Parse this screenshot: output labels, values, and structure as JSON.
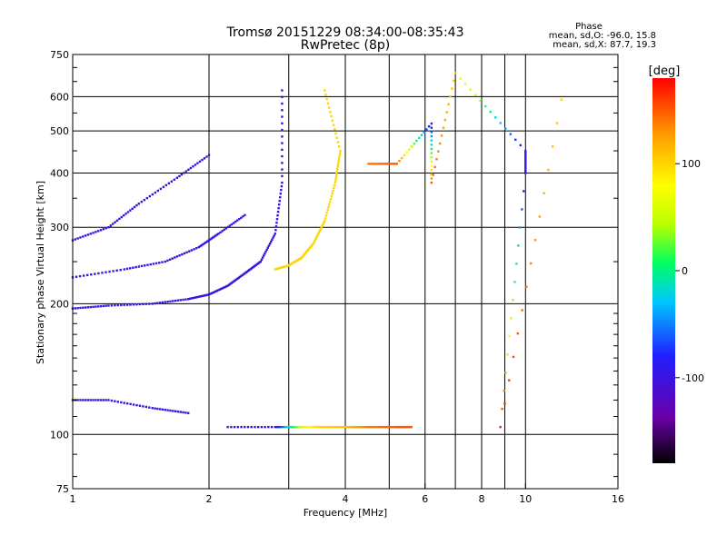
{
  "chart_data": {
    "type": "scatter",
    "title": "Tromsø 20151229 08:34:00-08:35:43",
    "subtitle": "RwPretec (8p)",
    "xlabel": "Frequency [MHz]",
    "ylabel": "Stationary phase Virtual Height [km]",
    "x_scale": "log2",
    "y_scale": "log",
    "xlim": [
      1,
      16
    ],
    "ylim": [
      75,
      750
    ],
    "x_ticks": [
      1,
      2,
      3,
      4,
      5,
      6,
      7,
      8,
      9,
      10,
      16
    ],
    "x_tick_labels": [
      "1",
      "2",
      "4",
      "6",
      "8",
      "10",
      "16"
    ],
    "x_tick_label_values": [
      1,
      2,
      4,
      6,
      8,
      10,
      16
    ],
    "y_ticks": [
      75,
      100,
      200,
      300,
      400,
      500,
      600,
      750
    ],
    "y_tick_labels": [
      "75",
      "100",
      "200",
      "300",
      "400",
      "500",
      "600",
      "750"
    ],
    "grid": true,
    "phase_stats": {
      "title": "Phase",
      "line1": "mean, sd,O: -96.0, 15.8",
      "line2": "mean, sd,X:  87.7, 19.3"
    },
    "colorbar": {
      "label": "[deg]",
      "range": [
        -180,
        180
      ],
      "ticks": [
        100,
        0,
        -100
      ],
      "tick_labels": [
        "100",
        "0",
        "-100"
      ],
      "colors": [
        "#000000",
        "#6a00a8",
        "#1f1fff",
        "#00c8ff",
        "#00ff60",
        "#b8ff00",
        "#ffff00",
        "#ffa000",
        "#ff0000"
      ]
    },
    "series": [
      {
        "points": [
          [
            1.0,
            195,
            -100
          ],
          [
            1.2,
            198,
            -100
          ],
          [
            1.5,
            200,
            -100
          ],
          [
            1.8,
            205,
            -100
          ],
          [
            2.0,
            210,
            -100
          ],
          [
            2.2,
            220,
            -100
          ],
          [
            2.4,
            235,
            -100
          ],
          [
            2.6,
            250,
            -100
          ],
          [
            2.8,
            290,
            -100
          ],
          [
            2.9,
            380,
            -100
          ],
          [
            2.9,
            620,
            -100
          ]
        ]
      },
      {
        "points": [
          [
            1.0,
            230,
            -100
          ],
          [
            1.3,
            240,
            -100
          ],
          [
            1.6,
            250,
            -100
          ],
          [
            1.9,
            270,
            -100
          ],
          [
            2.1,
            290,
            -100
          ],
          [
            2.4,
            320,
            -100
          ]
        ]
      },
      {
        "points": [
          [
            1.0,
            280,
            -100
          ],
          [
            1.2,
            300,
            -100
          ],
          [
            1.4,
            340,
            -100
          ],
          [
            1.7,
            390,
            -100
          ],
          [
            2.0,
            440,
            -100
          ]
        ]
      },
      {
        "points": [
          [
            2.8,
            240,
            100
          ],
          [
            3.0,
            245,
            100
          ],
          [
            3.2,
            255,
            100
          ],
          [
            3.4,
            275,
            100
          ],
          [
            3.6,
            310,
            100
          ],
          [
            3.8,
            380,
            100
          ],
          [
            3.9,
            450,
            100
          ],
          [
            3.6,
            620,
            100
          ]
        ]
      },
      {
        "points": [
          [
            1.0,
            120,
            -100
          ],
          [
            1.2,
            120,
            -100
          ],
          [
            1.5,
            115,
            -100
          ],
          [
            1.8,
            112,
            -100
          ]
        ]
      },
      {
        "points": [
          [
            2.2,
            104,
            -100
          ],
          [
            2.8,
            104,
            -100
          ],
          [
            3.2,
            104,
            60
          ],
          [
            3.5,
            104,
            100
          ],
          [
            4.0,
            104,
            110
          ],
          [
            4.5,
            104,
            140
          ],
          [
            5.2,
            104,
            150
          ],
          [
            5.6,
            104,
            150
          ]
        ]
      },
      {
        "points": [
          [
            4.5,
            420,
            140
          ],
          [
            5.2,
            420,
            150
          ],
          [
            6.2,
            520,
            -100
          ],
          [
            6.2,
            380,
            150
          ],
          [
            7.0,
            680,
            100
          ],
          [
            10.0,
            450,
            -100
          ],
          [
            10.0,
            400,
            -100
          ],
          [
            8.8,
            104,
            170
          ],
          [
            12.0,
            590,
            100
          ]
        ]
      }
    ]
  }
}
